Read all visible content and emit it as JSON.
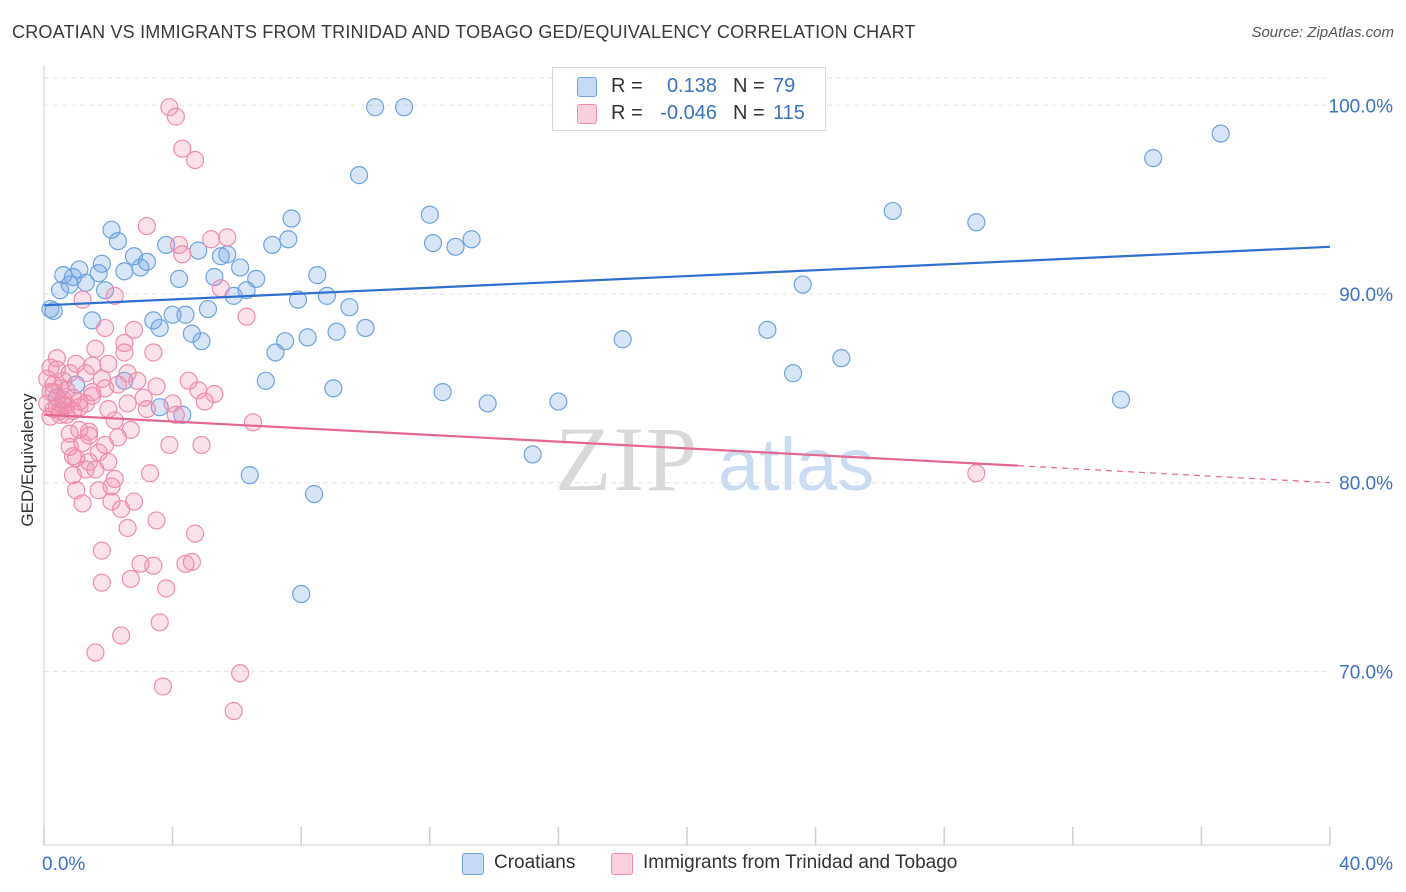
{
  "header": {
    "title": "CROATIAN VS IMMIGRANTS FROM TRINIDAD AND TOBAGO GED/EQUIVALENCY CORRELATION CHART",
    "source": "Source: ZipAtlas.com"
  },
  "legend_top": {
    "rows": [
      {
        "r_label": "R =",
        "r_value": "0.138",
        "n_label": "N =",
        "n_value": "79",
        "color": "#6fa3e0"
      },
      {
        "r_label": "R =",
        "r_value": "-0.046",
        "n_label": "N =",
        "n_value": "115",
        "color": "#f08cab"
      }
    ]
  },
  "legend_bottom": {
    "items": [
      {
        "label": "Croatians",
        "color": "#6fa3e0"
      },
      {
        "label": "Immigrants from Trinidad and Tobago",
        "color": "#f08cab"
      }
    ]
  },
  "watermark": {
    "zip": "ZIP",
    "atlas": "atlas"
  },
  "chart_data": {
    "type": "scatter",
    "title": "CROATIAN VS IMMIGRANTS FROM TRINIDAD AND TOBAGO GED/EQUIVALENCY CORRELATION CHART",
    "xlabel": "",
    "ylabel": "GED/Equivalency",
    "xlim": [
      0,
      40
    ],
    "ylim": [
      60.8,
      102.4
    ],
    "x_tick_labels": [
      "0.0%",
      "40.0%"
    ],
    "y_tick_labels": [
      "100.0%",
      "90.0%",
      "80.0%",
      "70.0%"
    ],
    "y_ticks": [
      100,
      90,
      80,
      70
    ],
    "grid": true,
    "legend_position": "top-center",
    "series": [
      {
        "name": "Croatians",
        "color": "#6fa3e0",
        "trend": {
          "x0": 0,
          "y0": 89.4,
          "x1": 40,
          "y1": 92.5
        },
        "points": [
          [
            0.3,
            89.1
          ],
          [
            0.5,
            90.2
          ],
          [
            0.6,
            91.0
          ],
          [
            0.8,
            90.5
          ],
          [
            0.9,
            90.9
          ],
          [
            1.1,
            91.3
          ],
          [
            1.3,
            90.6
          ],
          [
            1.5,
            88.6
          ],
          [
            1.7,
            91.1
          ],
          [
            1.8,
            91.6
          ],
          [
            1.9,
            90.2
          ],
          [
            2.1,
            93.4
          ],
          [
            2.3,
            92.8
          ],
          [
            2.5,
            91.2
          ],
          [
            2.8,
            92.0
          ],
          [
            3.0,
            91.4
          ],
          [
            3.2,
            91.7
          ],
          [
            3.4,
            88.6
          ],
          [
            3.6,
            88.2
          ],
          [
            3.8,
            92.6
          ],
          [
            4.0,
            88.9
          ],
          [
            4.2,
            90.8
          ],
          [
            4.4,
            88.9
          ],
          [
            4.6,
            87.9
          ],
          [
            4.8,
            92.3
          ],
          [
            4.9,
            87.5
          ],
          [
            5.1,
            89.2
          ],
          [
            5.3,
            90.9
          ],
          [
            5.5,
            92.0
          ],
          [
            5.7,
            92.1
          ],
          [
            5.9,
            89.9
          ],
          [
            6.1,
            91.4
          ],
          [
            6.3,
            90.2
          ],
          [
            6.6,
            90.8
          ],
          [
            6.9,
            85.4
          ],
          [
            7.1,
            92.6
          ],
          [
            7.2,
            86.9
          ],
          [
            7.5,
            87.5
          ],
          [
            7.6,
            92.9
          ],
          [
            7.7,
            94.0
          ],
          [
            7.9,
            89.7
          ],
          [
            8.2,
            87.7
          ],
          [
            8.5,
            91.0
          ],
          [
            8.8,
            89.9
          ],
          [
            9.1,
            88.0
          ],
          [
            9.5,
            89.3
          ],
          [
            9.8,
            96.3
          ],
          [
            10.0,
            88.2
          ],
          [
            10.3,
            99.9
          ],
          [
            11.2,
            99.9
          ],
          [
            12.0,
            94.2
          ],
          [
            12.1,
            92.7
          ],
          [
            12.4,
            84.8
          ],
          [
            12.8,
            92.5
          ],
          [
            13.3,
            92.9
          ],
          [
            13.8,
            84.2
          ],
          [
            2.5,
            85.4
          ],
          [
            9.0,
            85.0
          ],
          [
            15.2,
            81.5
          ],
          [
            16.0,
            84.3
          ],
          [
            18.0,
            87.6
          ],
          [
            19.3,
            99.9
          ],
          [
            22.5,
            88.1
          ],
          [
            23.3,
            85.8
          ],
          [
            23.6,
            90.5
          ],
          [
            24.8,
            86.6
          ],
          [
            26.4,
            94.4
          ],
          [
            29.0,
            93.8
          ],
          [
            33.5,
            84.4
          ],
          [
            34.5,
            97.2
          ],
          [
            36.6,
            98.5
          ],
          [
            6.4,
            80.4
          ],
          [
            8.4,
            79.4
          ],
          [
            8.0,
            74.1
          ],
          [
            0.4,
            84.5
          ],
          [
            1.0,
            85.2
          ],
          [
            3.6,
            84.0
          ],
          [
            4.3,
            83.6
          ],
          [
            0.2,
            89.2
          ]
        ]
      },
      {
        "name": "Immigrants from Trinidad and Tobago",
        "color": "#f08cab",
        "trend": {
          "x0": 0,
          "y0": 83.6,
          "x1": 30.3,
          "y1": 80.9,
          "dash_to_x": 40,
          "dash_to_y": 80.0
        },
        "points": [
          [
            0.1,
            84.2
          ],
          [
            0.1,
            85.5
          ],
          [
            0.2,
            83.5
          ],
          [
            0.2,
            86.1
          ],
          [
            0.3,
            84.8
          ],
          [
            0.3,
            85.2
          ],
          [
            0.4,
            84.0
          ],
          [
            0.4,
            86.6
          ],
          [
            0.5,
            85.0
          ],
          [
            0.5,
            83.8
          ],
          [
            0.6,
            84.4
          ],
          [
            0.6,
            85.4
          ],
          [
            0.7,
            83.6
          ],
          [
            0.7,
            84.9
          ],
          [
            0.8,
            82.6
          ],
          [
            0.8,
            81.9
          ],
          [
            0.9,
            81.4
          ],
          [
            0.9,
            80.4
          ],
          [
            1.0,
            79.6
          ],
          [
            1.0,
            81.3
          ],
          [
            1.1,
            82.8
          ],
          [
            1.1,
            84.0
          ],
          [
            1.2,
            82.1
          ],
          [
            1.2,
            78.9
          ],
          [
            1.3,
            80.7
          ],
          [
            1.3,
            85.8
          ],
          [
            1.4,
            81.1
          ],
          [
            1.4,
            82.7
          ],
          [
            1.5,
            86.2
          ],
          [
            1.5,
            84.6
          ],
          [
            1.6,
            80.7
          ],
          [
            1.6,
            87.1
          ],
          [
            1.7,
            81.6
          ],
          [
            1.7,
            79.6
          ],
          [
            1.8,
            76.4
          ],
          [
            1.8,
            74.7
          ],
          [
            1.9,
            82.0
          ],
          [
            1.9,
            85.0
          ],
          [
            2.0,
            86.3
          ],
          [
            2.0,
            81.1
          ],
          [
            2.1,
            79.8
          ],
          [
            2.1,
            79.0
          ],
          [
            2.2,
            80.2
          ],
          [
            2.3,
            82.4
          ],
          [
            2.3,
            85.2
          ],
          [
            2.4,
            78.6
          ],
          [
            2.5,
            86.9
          ],
          [
            2.5,
            87.4
          ],
          [
            2.6,
            84.2
          ],
          [
            2.6,
            77.6
          ],
          [
            2.7,
            74.9
          ],
          [
            2.8,
            79.0
          ],
          [
            2.9,
            85.4
          ],
          [
            3.0,
            75.7
          ],
          [
            3.1,
            84.5
          ],
          [
            3.2,
            83.9
          ],
          [
            3.2,
            93.6
          ],
          [
            3.3,
            80.5
          ],
          [
            3.4,
            75.6
          ],
          [
            3.5,
            85.1
          ],
          [
            3.5,
            78.0
          ],
          [
            3.6,
            72.6
          ],
          [
            3.7,
            69.2
          ],
          [
            3.8,
            74.4
          ],
          [
            3.9,
            82.0
          ],
          [
            4.0,
            84.2
          ],
          [
            4.1,
            83.6
          ],
          [
            4.2,
            92.6
          ],
          [
            4.3,
            92.1
          ],
          [
            4.4,
            75.7
          ],
          [
            4.5,
            85.4
          ],
          [
            4.6,
            75.8
          ],
          [
            4.7,
            77.3
          ],
          [
            4.8,
            84.9
          ],
          [
            4.9,
            82.0
          ],
          [
            5.0,
            84.3
          ],
          [
            5.2,
            92.9
          ],
          [
            5.3,
            84.7
          ],
          [
            5.5,
            90.3
          ],
          [
            5.7,
            93.0
          ],
          [
            5.9,
            67.9
          ],
          [
            6.1,
            69.9
          ],
          [
            6.3,
            88.8
          ],
          [
            6.5,
            83.2
          ],
          [
            4.3,
            97.7
          ],
          [
            4.1,
            99.4
          ],
          [
            3.9,
            99.9
          ],
          [
            4.7,
            97.1
          ],
          [
            1.6,
            71.0
          ],
          [
            2.4,
            71.9
          ],
          [
            1.2,
            89.7
          ],
          [
            1.9,
            88.2
          ],
          [
            2.2,
            89.9
          ],
          [
            2.6,
            85.8
          ],
          [
            2.8,
            88.1
          ],
          [
            3.4,
            86.9
          ],
          [
            0.3,
            83.9
          ],
          [
            0.6,
            84.1
          ],
          [
            0.9,
            83.8
          ],
          [
            1.4,
            82.5
          ],
          [
            1.1,
            84.3
          ],
          [
            0.5,
            83.6
          ],
          [
            0.2,
            84.8
          ],
          [
            29.0,
            80.5
          ],
          [
            1.8,
            85.5
          ],
          [
            2.0,
            83.9
          ],
          [
            1.5,
            84.8
          ],
          [
            1.0,
            86.3
          ],
          [
            0.8,
            85.8
          ],
          [
            0.4,
            86.0
          ],
          [
            0.7,
            84.1
          ],
          [
            1.3,
            84.2
          ],
          [
            2.2,
            83.3
          ],
          [
            2.7,
            82.8
          ],
          [
            0.9,
            84.5
          ]
        ]
      }
    ]
  }
}
